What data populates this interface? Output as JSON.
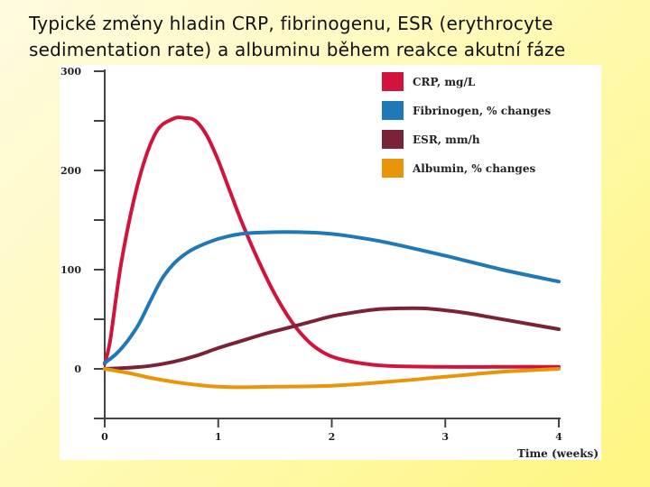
{
  "slide": {
    "title_line1": "Typické změny hladin  CRP, fibrinogenu, ESR (erythrocyte",
    "title_line2": "sedimentation rate) a albuminu během reakce akutní fáze"
  },
  "chart_data": {
    "type": "line",
    "title": "",
    "xlabel": "Time (weeks)",
    "ylabel": "",
    "xlim": [
      0,
      4
    ],
    "ylim": [
      -50,
      300
    ],
    "x_ticks": [
      0,
      1,
      2,
      3,
      4
    ],
    "y_ticks": [
      0,
      100,
      200,
      300
    ],
    "y_minor_ticks": [
      -50,
      50,
      150,
      250
    ],
    "grid": false,
    "legend_position": "top-right",
    "series": [
      {
        "name": "CRP, mg/L",
        "color": "#d2143c",
        "x": [
          0,
          0.05,
          0.15,
          0.3,
          0.45,
          0.6,
          0.7,
          0.8,
          0.9,
          1.0,
          1.1,
          1.2,
          1.35,
          1.5,
          1.65,
          1.8,
          1.95,
          2.1,
          2.3,
          2.5,
          3.0,
          3.5,
          4.0
        ],
        "y": [
          5,
          30,
          110,
          190,
          238,
          252,
          253,
          250,
          235,
          210,
          180,
          150,
          110,
          75,
          47,
          27,
          15,
          9,
          5,
          3,
          2,
          2,
          2
        ]
      },
      {
        "name": "Fibrinogen, % changes",
        "color": "#1f78b8",
        "x": [
          0,
          0.1,
          0.2,
          0.3,
          0.4,
          0.5,
          0.6,
          0.7,
          0.8,
          1.0,
          1.2,
          1.4,
          1.6,
          1.8,
          2.0,
          2.2,
          2.5,
          3.0,
          3.5,
          4.0
        ],
        "y": [
          6,
          15,
          28,
          45,
          68,
          90,
          105,
          115,
          122,
          131,
          136,
          137.5,
          138,
          137.5,
          136,
          133,
          127,
          114,
          100,
          88
        ]
      },
      {
        "name": "ESR, mm/h",
        "color": "#7a2236",
        "x": [
          0,
          0.2,
          0.4,
          0.6,
          0.8,
          1.0,
          1.2,
          1.4,
          1.6,
          1.8,
          2.0,
          2.2,
          2.4,
          2.6,
          2.8,
          3.0,
          3.2,
          3.4,
          3.6,
          3.8,
          4.0
        ],
        "y": [
          0,
          1,
          3,
          7,
          13,
          21,
          28,
          35,
          41,
          47,
          53,
          57,
          60,
          61,
          61,
          59,
          56,
          52,
          48,
          44,
          40
        ]
      },
      {
        "name": "Albumin, % changes",
        "color": "#e8950a",
        "x": [
          0,
          0.2,
          0.4,
          0.6,
          0.8,
          1.0,
          1.2,
          1.5,
          2.0,
          2.5,
          3.0,
          3.5,
          4.0
        ],
        "y": [
          0,
          -4,
          -9,
          -13,
          -16,
          -18,
          -18.5,
          -18,
          -17,
          -13,
          -8,
          -3,
          0
        ]
      }
    ]
  }
}
